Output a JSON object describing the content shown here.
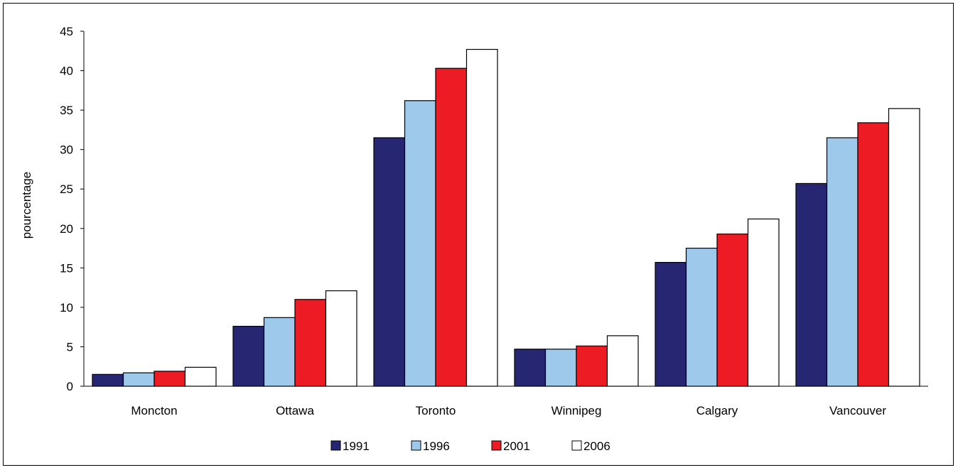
{
  "chart_data": {
    "type": "bar",
    "title": "",
    "xlabel": "",
    "ylabel": "pourcentage",
    "ylim": [
      0,
      45
    ],
    "yticks": [
      0,
      5,
      10,
      15,
      20,
      25,
      30,
      35,
      40,
      45
    ],
    "grid": false,
    "legend_position": "bottom",
    "categories": [
      "Moncton",
      "Ottawa",
      "Toronto",
      "Winnipeg",
      "Calgary",
      "Vancouver"
    ],
    "series": [
      {
        "name": "1991",
        "color": "#262673",
        "values": [
          1.5,
          7.6,
          31.5,
          4.7,
          15.7,
          25.7
        ]
      },
      {
        "name": "1996",
        "color": "#9FC9EA",
        "values": [
          1.7,
          8.7,
          36.2,
          4.7,
          17.5,
          31.5
        ]
      },
      {
        "name": "2001",
        "color": "#ED1C24",
        "values": [
          1.9,
          11.0,
          40.3,
          5.1,
          19.3,
          33.4
        ]
      },
      {
        "name": "2006",
        "color": "#FFFFFF",
        "values": [
          2.4,
          12.1,
          42.7,
          6.4,
          21.2,
          35.2
        ]
      }
    ]
  }
}
